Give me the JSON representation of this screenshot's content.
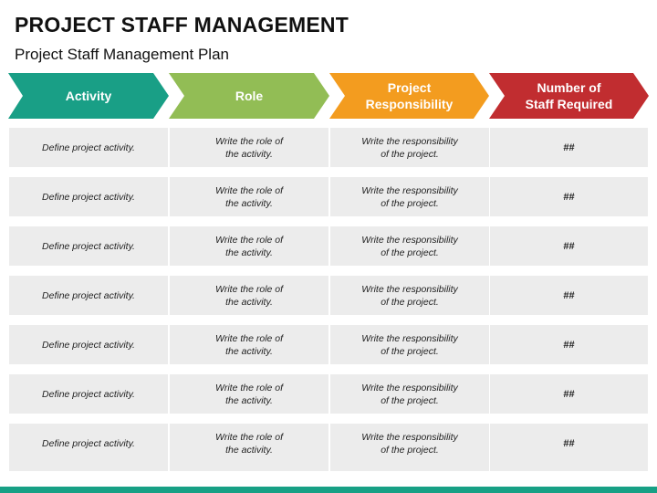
{
  "title": "PROJECT STAFF MANAGEMENT",
  "subtitle": "Project Staff Management Plan",
  "colors": {
    "activity": "#199f86",
    "role": "#92bd55",
    "responsibility": "#f39c1f",
    "staff": "#c12d30",
    "row_bg": "#ececec",
    "bottom_bar": "#17a085"
  },
  "headers": [
    {
      "label": "Activity"
    },
    {
      "label": "Role"
    },
    {
      "label": "Project\nResponsibility"
    },
    {
      "label": "Number of\nStaff Required"
    }
  ],
  "rows": [
    {
      "activity": "Define project activity.",
      "role": "Write the role of\nthe activity.",
      "responsibility": "Write the responsibility\nof the project.",
      "staff": "##"
    },
    {
      "activity": "Define project activity.",
      "role": "Write the role of\nthe activity.",
      "responsibility": "Write the responsibility\nof the project.",
      "staff": "##"
    },
    {
      "activity": "Define project activity.",
      "role": "Write the role of\nthe activity.",
      "responsibility": "Write the responsibility\nof the project.",
      "staff": "##"
    },
    {
      "activity": "Define project activity.",
      "role": "Write the role of\nthe activity.",
      "responsibility": "Write the responsibility\nof the project.",
      "staff": "##"
    },
    {
      "activity": "Define project activity.",
      "role": "Write the role of\nthe activity.",
      "responsibility": "Write the responsibility\nof the project.",
      "staff": "##"
    },
    {
      "activity": "Define project activity.",
      "role": "Write the role of\nthe activity.",
      "responsibility": "Write the responsibility\nof the project.",
      "staff": "##"
    },
    {
      "activity": "Define project activity.",
      "role": "Write the role of\nthe activity.",
      "responsibility": "Write the responsibility\nof the project.",
      "staff": "##"
    }
  ]
}
